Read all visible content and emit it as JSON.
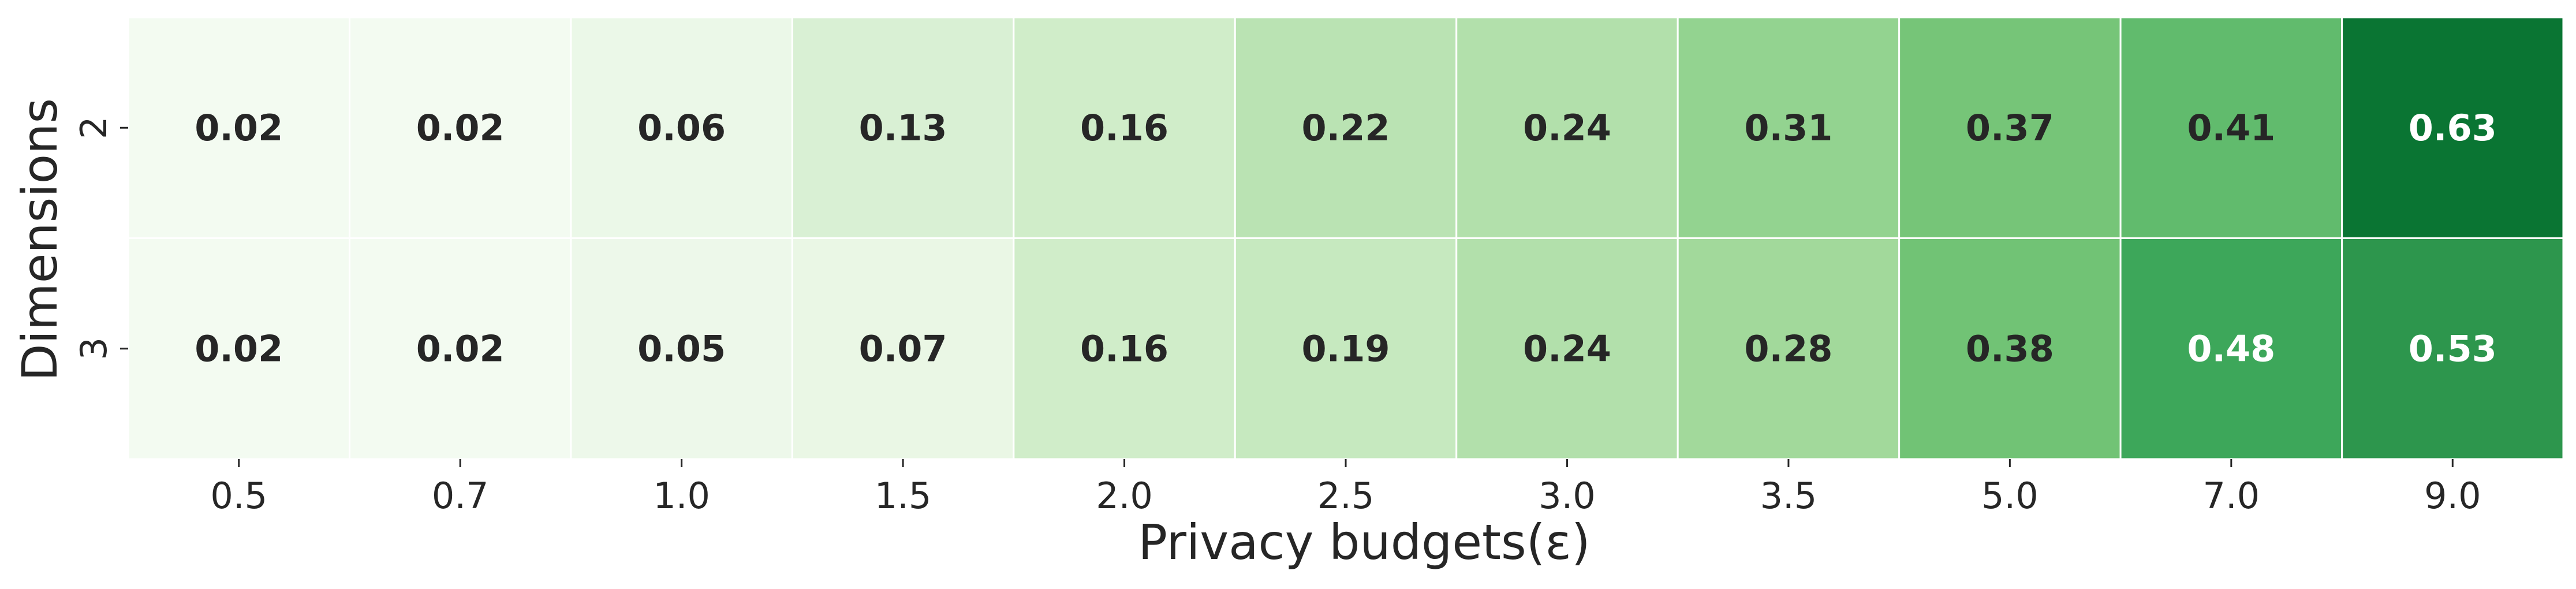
{
  "chart_data": {
    "type": "heatmap",
    "title": "",
    "xlabel": "Privacy budgets(ε)",
    "ylabel": "Dimensions",
    "x_categories": [
      "0.5",
      "0.7",
      "1.0",
      "1.5",
      "2.0",
      "2.5",
      "3.0",
      "3.5",
      "5.0",
      "7.0",
      "9.0"
    ],
    "y_categories": [
      "2",
      "3"
    ],
    "values": [
      [
        0.02,
        0.02,
        0.06,
        0.13,
        0.16,
        0.22,
        0.24,
        0.31,
        0.37,
        0.41,
        0.63
      ],
      [
        0.02,
        0.02,
        0.05,
        0.07,
        0.16,
        0.19,
        0.24,
        0.28,
        0.38,
        0.48,
        0.53
      ]
    ],
    "value_labels": [
      [
        "0.02",
        "0.02",
        "0.06",
        "0.13",
        "0.16",
        "0.22",
        "0.24",
        "0.31",
        "0.37",
        "0.41",
        "0.63"
      ],
      [
        "0.02",
        "0.02",
        "0.05",
        "0.07",
        "0.16",
        "0.19",
        "0.24",
        "0.28",
        "0.38",
        "0.48",
        "0.53"
      ]
    ],
    "colormap": "Greens",
    "color_range": [
      0.0,
      0.75
    ],
    "colorbar": false,
    "grid": false,
    "cell_separator_color": "#ffffff",
    "label_color_dark": "#262626",
    "label_color_light": "#ffffff"
  }
}
